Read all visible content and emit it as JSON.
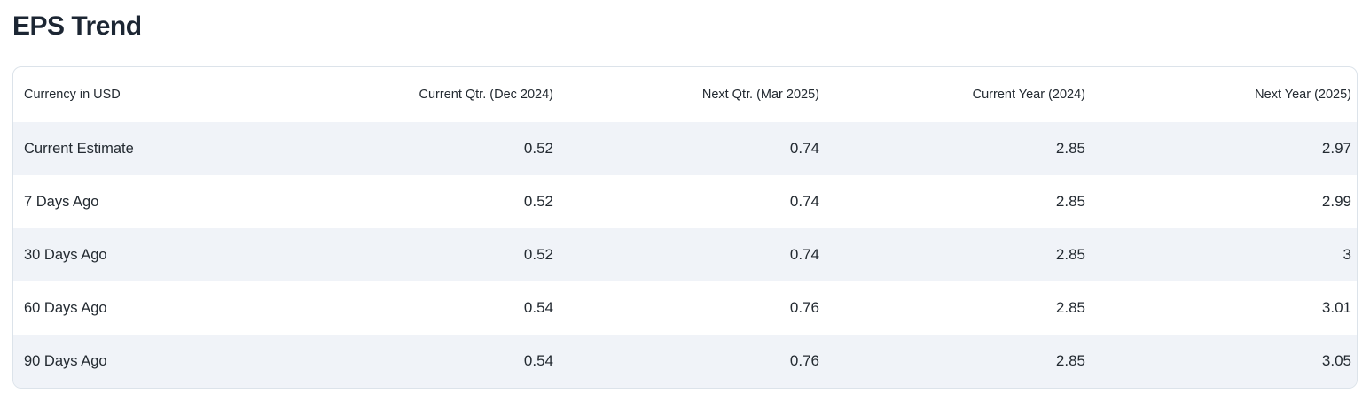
{
  "page": {
    "title": "EPS Trend"
  },
  "colors": {
    "title_text": "#1c2633",
    "body_text": "#232a31",
    "row_stripe": "#f0f3f8",
    "card_border": "#dce3ea",
    "background": "#ffffff"
  },
  "table": {
    "currency_label": "Currency in USD",
    "columns": [
      "Current Qtr. (Dec 2024)",
      "Next Qtr. (Mar 2025)",
      "Current Year (2024)",
      "Next Year (2025)"
    ],
    "rows": [
      {
        "label": "Current Estimate",
        "values": [
          "0.52",
          "0.74",
          "2.85",
          "2.97"
        ]
      },
      {
        "label": "7 Days Ago",
        "values": [
          "0.52",
          "0.74",
          "2.85",
          "2.99"
        ]
      },
      {
        "label": "30 Days Ago",
        "values": [
          "0.52",
          "0.74",
          "2.85",
          "3"
        ]
      },
      {
        "label": "60 Days Ago",
        "values": [
          "0.54",
          "0.76",
          "2.85",
          "3.01"
        ]
      },
      {
        "label": "90 Days Ago",
        "values": [
          "0.54",
          "0.76",
          "2.85",
          "3.05"
        ]
      }
    ]
  },
  "chart_data": {
    "type": "table",
    "title": "EPS Trend",
    "categories": [
      "Current Qtr. (Dec 2024)",
      "Next Qtr. (Mar 2025)",
      "Current Year (2024)",
      "Next Year (2025)"
    ],
    "series": [
      {
        "name": "Current Estimate",
        "values": [
          0.52,
          0.74,
          2.85,
          2.97
        ]
      },
      {
        "name": "7 Days Ago",
        "values": [
          0.52,
          0.74,
          2.85,
          2.99
        ]
      },
      {
        "name": "30 Days Ago",
        "values": [
          0.52,
          0.74,
          2.85,
          3.0
        ]
      },
      {
        "name": "60 Days Ago",
        "values": [
          0.54,
          0.76,
          2.85,
          3.01
        ]
      },
      {
        "name": "90 Days Ago",
        "values": [
          0.54,
          0.76,
          2.85,
          3.05
        ]
      }
    ]
  }
}
